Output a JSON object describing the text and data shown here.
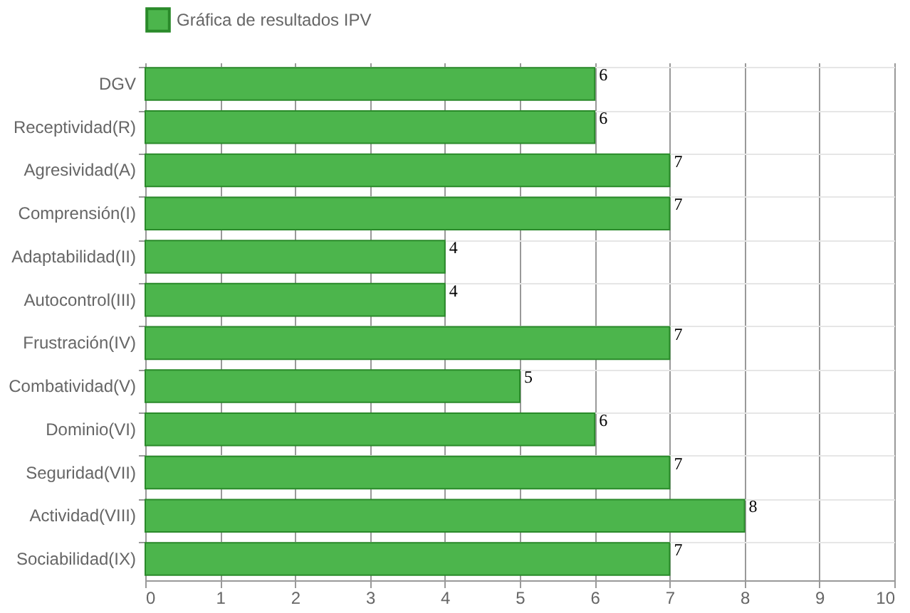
{
  "chart_data": {
    "type": "bar",
    "orientation": "horizontal",
    "categories": [
      "DGV",
      "Receptividad(R)",
      "Agresividad(A)",
      "Comprensión(I)",
      "Adaptabilidad(II)",
      "Autocontrol(III)",
      "Frustración(IV)",
      "Combatividad(V)",
      "Dominio(VI)",
      "Seguridad(VII)",
      "Actividad(VIII)",
      "Sociabilidad(IX)"
    ],
    "series": [
      {
        "name": "Gráfica de resultados IPV",
        "color": "#4cb54c",
        "values": [
          6,
          6,
          7,
          7,
          4,
          4,
          7,
          5,
          6,
          7,
          8,
          7
        ]
      }
    ],
    "xlim": [
      0,
      10
    ],
    "xticks": [
      0,
      1,
      2,
      3,
      4,
      5,
      6,
      7,
      8,
      9,
      10
    ],
    "grid": true,
    "legend": "top",
    "data_labels": true
  }
}
